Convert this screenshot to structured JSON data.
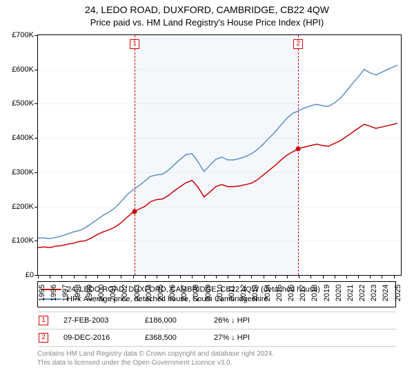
{
  "title": "24, LEDO ROAD, DUXFORD, CAMBRIDGE, CB22 4QW",
  "subtitle": "Price paid vs. HM Land Registry's House Price Index (HPI)",
  "chart": {
    "type": "line",
    "background_color": "#ffffff",
    "grid_color": "#e0e0e0",
    "x_range_years": [
      1995,
      2025.6
    ],
    "y_range": [
      0,
      700000
    ],
    "y_ticks": [
      0,
      100000,
      200000,
      300000,
      400000,
      500000,
      600000,
      700000
    ],
    "y_tick_labels": [
      "£0",
      "£100K",
      "£200K",
      "£300K",
      "£400K",
      "£500K",
      "£600K",
      "£700K"
    ],
    "x_ticks": [
      1995,
      1996,
      1997,
      1998,
      1999,
      2000,
      2001,
      2002,
      2003,
      2004,
      2005,
      2006,
      2007,
      2008,
      2009,
      2010,
      2011,
      2012,
      2013,
      2014,
      2015,
      2016,
      2017,
      2018,
      2019,
      2020,
      2021,
      2022,
      2023,
      2024,
      2025
    ],
    "shade_between_years": [
      2003.16,
      2016.94
    ],
    "markers": [
      {
        "id": "1",
        "year": 2003.16,
        "price": 186000
      },
      {
        "id": "2",
        "year": 2016.94,
        "price": 368500
      }
    ],
    "label_fontsize": 11,
    "title_fontsize": 14,
    "series": [
      {
        "name": "property",
        "color": "#cc0000",
        "line_width": 1.5,
        "points": [
          [
            1995.0,
            80000
          ],
          [
            1995.5,
            82000
          ],
          [
            1996.0,
            80000
          ],
          [
            1996.5,
            84000
          ],
          [
            1997.0,
            86000
          ],
          [
            1997.5,
            90000
          ],
          [
            1998.0,
            93000
          ],
          [
            1998.5,
            98000
          ],
          [
            1999.0,
            100000
          ],
          [
            1999.5,
            108000
          ],
          [
            2000.0,
            118000
          ],
          [
            2000.5,
            126000
          ],
          [
            2001.0,
            132000
          ],
          [
            2001.5,
            140000
          ],
          [
            2002.0,
            152000
          ],
          [
            2002.5,
            168000
          ],
          [
            2003.0,
            183000
          ],
          [
            2003.16,
            186000
          ],
          [
            2003.5,
            192000
          ],
          [
            2004.0,
            200000
          ],
          [
            2004.5,
            214000
          ],
          [
            2005.0,
            220000
          ],
          [
            2005.5,
            222000
          ],
          [
            2006.0,
            232000
          ],
          [
            2006.5,
            246000
          ],
          [
            2007.0,
            258000
          ],
          [
            2007.5,
            270000
          ],
          [
            2008.0,
            276000
          ],
          [
            2008.5,
            256000
          ],
          [
            2009.0,
            228000
          ],
          [
            2009.5,
            242000
          ],
          [
            2010.0,
            258000
          ],
          [
            2010.5,
            264000
          ],
          [
            2011.0,
            258000
          ],
          [
            2011.5,
            258000
          ],
          [
            2012.0,
            260000
          ],
          [
            2012.5,
            264000
          ],
          [
            2013.0,
            268000
          ],
          [
            2013.5,
            278000
          ],
          [
            2014.0,
            292000
          ],
          [
            2014.5,
            306000
          ],
          [
            2015.0,
            320000
          ],
          [
            2015.5,
            336000
          ],
          [
            2016.0,
            350000
          ],
          [
            2016.5,
            360000
          ],
          [
            2016.94,
            368500
          ],
          [
            2017.5,
            374000
          ],
          [
            2018.0,
            378000
          ],
          [
            2018.5,
            382000
          ],
          [
            2019.0,
            378000
          ],
          [
            2019.5,
            376000
          ],
          [
            2020.0,
            384000
          ],
          [
            2020.5,
            392000
          ],
          [
            2021.0,
            404000
          ],
          [
            2021.5,
            416000
          ],
          [
            2022.0,
            428000
          ],
          [
            2022.5,
            440000
          ],
          [
            2023.0,
            434000
          ],
          [
            2023.5,
            428000
          ],
          [
            2024.0,
            432000
          ],
          [
            2024.5,
            436000
          ],
          [
            2025.0,
            440000
          ],
          [
            2025.3,
            444000
          ]
        ]
      },
      {
        "name": "hpi",
        "color": "#5b8fc7",
        "line_width": 1.5,
        "points": [
          [
            1995.0,
            108000
          ],
          [
            1995.5,
            108000
          ],
          [
            1996.0,
            106000
          ],
          [
            1996.5,
            110000
          ],
          [
            1997.0,
            114000
          ],
          [
            1997.5,
            120000
          ],
          [
            1998.0,
            126000
          ],
          [
            1998.5,
            130000
          ],
          [
            1999.0,
            138000
          ],
          [
            1999.5,
            150000
          ],
          [
            2000.0,
            162000
          ],
          [
            2000.5,
            174000
          ],
          [
            2001.0,
            184000
          ],
          [
            2001.5,
            196000
          ],
          [
            2002.0,
            214000
          ],
          [
            2002.5,
            234000
          ],
          [
            2003.0,
            248000
          ],
          [
            2003.5,
            260000
          ],
          [
            2004.0,
            274000
          ],
          [
            2004.5,
            288000
          ],
          [
            2005.0,
            292000
          ],
          [
            2005.5,
            294000
          ],
          [
            2006.0,
            306000
          ],
          [
            2006.5,
            322000
          ],
          [
            2007.0,
            338000
          ],
          [
            2007.5,
            352000
          ],
          [
            2008.0,
            354000
          ],
          [
            2008.5,
            330000
          ],
          [
            2009.0,
            302000
          ],
          [
            2009.5,
            320000
          ],
          [
            2010.0,
            338000
          ],
          [
            2010.5,
            344000
          ],
          [
            2011.0,
            336000
          ],
          [
            2011.5,
            336000
          ],
          [
            2012.0,
            340000
          ],
          [
            2012.5,
            346000
          ],
          [
            2013.0,
            354000
          ],
          [
            2013.5,
            366000
          ],
          [
            2014.0,
            382000
          ],
          [
            2014.5,
            400000
          ],
          [
            2015.0,
            418000
          ],
          [
            2015.5,
            438000
          ],
          [
            2016.0,
            458000
          ],
          [
            2016.5,
            472000
          ],
          [
            2017.0,
            480000
          ],
          [
            2017.5,
            488000
          ],
          [
            2018.0,
            494000
          ],
          [
            2018.5,
            498000
          ],
          [
            2019.0,
            494000
          ],
          [
            2019.5,
            492000
          ],
          [
            2020.0,
            502000
          ],
          [
            2020.5,
            516000
          ],
          [
            2021.0,
            536000
          ],
          [
            2021.5,
            558000
          ],
          [
            2022.0,
            578000
          ],
          [
            2022.5,
            600000
          ],
          [
            2023.0,
            590000
          ],
          [
            2023.5,
            584000
          ],
          [
            2024.0,
            592000
          ],
          [
            2024.5,
            600000
          ],
          [
            2025.0,
            608000
          ],
          [
            2025.3,
            612000
          ]
        ]
      }
    ]
  },
  "legend": {
    "items": [
      {
        "color": "#cc0000",
        "label": "24, LEDO ROAD, DUXFORD, CAMBRIDGE, CB22 4QW (detached house)"
      },
      {
        "color": "#5b8fc7",
        "label": "HPI: Average price, detached house, South Cambridgeshire"
      }
    ]
  },
  "sales": [
    {
      "id": "1",
      "date": "27-FEB-2003",
      "price": "£186,000",
      "pct": "26% ↓ HPI"
    },
    {
      "id": "2",
      "date": "09-DEC-2016",
      "price": "£368,500",
      "pct": "27% ↓ HPI"
    }
  ],
  "footer": {
    "line1": "Contains HM Land Registry data © Crown copyright and database right 2024.",
    "line2": "This data is licensed under the Open Government Licence v3.0."
  }
}
